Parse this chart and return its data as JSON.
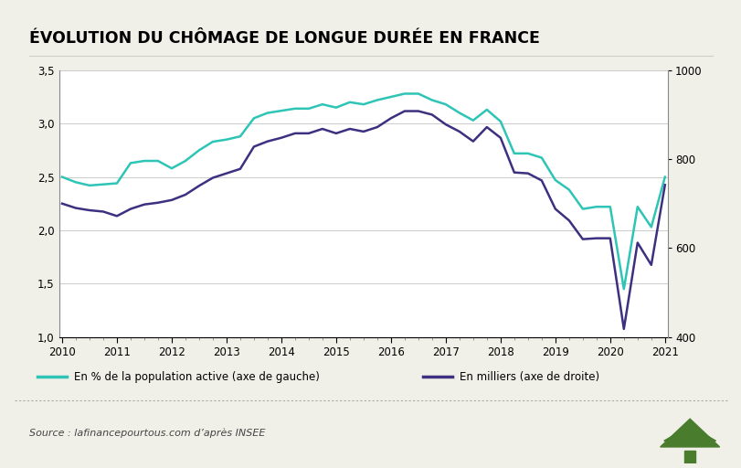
{
  "title": "ÉVOLUTION DU CHÔMAGE DE LONGUE DURÉE EN FRANCE",
  "source": "Source : lafinancepourtous.com d’après INSEE",
  "color_pct": "#2ec4b6",
  "color_thou": "#3d3080",
  "left_ylim": [
    1.0,
    3.5
  ],
  "right_ylim": [
    400,
    1000
  ],
  "left_yticks": [
    1.0,
    1.5,
    2.0,
    2.5,
    3.0,
    3.5
  ],
  "right_ytick_positions": [
    400,
    600,
    800,
    1000
  ],
  "right_ytick_labels": [
    "400",
    "600",
    "800",
    "1000"
  ],
  "legend_pct": "En % de la population active (axe de gauche)",
  "legend_thou": "En milliers (axe de droite)",
  "background_color": "#f0efe8",
  "plot_bg": "#ffffff",
  "years_pct": [
    2010.0,
    2010.25,
    2010.5,
    2010.75,
    2011.0,
    2011.25,
    2011.5,
    2011.75,
    2012.0,
    2012.25,
    2012.5,
    2012.75,
    2013.0,
    2013.25,
    2013.5,
    2013.75,
    2014.0,
    2014.25,
    2014.5,
    2014.75,
    2015.0,
    2015.25,
    2015.5,
    2015.75,
    2016.0,
    2016.25,
    2016.5,
    2016.75,
    2017.0,
    2017.25,
    2017.5,
    2017.75,
    2018.0,
    2018.25,
    2018.5,
    2018.75,
    2019.0,
    2019.25,
    2019.5,
    2019.75,
    2020.0,
    2020.25,
    2020.5,
    2020.75,
    2021.0
  ],
  "values_pct": [
    2.5,
    2.45,
    2.42,
    2.43,
    2.44,
    2.63,
    2.65,
    2.65,
    2.58,
    2.65,
    2.75,
    2.83,
    2.85,
    2.88,
    3.05,
    3.1,
    3.12,
    3.14,
    3.14,
    3.18,
    3.15,
    3.2,
    3.18,
    3.22,
    3.25,
    3.28,
    3.28,
    3.22,
    3.18,
    3.1,
    3.03,
    3.13,
    3.02,
    2.72,
    2.72,
    2.68,
    2.47,
    2.38,
    2.2,
    2.22,
    2.22,
    1.45,
    2.22,
    2.03,
    2.5
  ],
  "years_thou": [
    2010.0,
    2010.25,
    2010.5,
    2010.75,
    2011.0,
    2011.25,
    2011.5,
    2011.75,
    2012.0,
    2012.25,
    2012.5,
    2012.75,
    2013.0,
    2013.25,
    2013.5,
    2013.75,
    2014.0,
    2014.25,
    2014.5,
    2014.75,
    2015.0,
    2015.25,
    2015.5,
    2015.75,
    2016.0,
    2016.25,
    2016.5,
    2016.75,
    2017.0,
    2017.25,
    2017.5,
    2017.75,
    2018.0,
    2018.25,
    2018.5,
    2018.75,
    2019.0,
    2019.25,
    2019.5,
    2019.75,
    2020.0,
    2020.25,
    2020.5,
    2020.75,
    2021.0
  ],
  "values_thou": [
    700,
    690,
    685,
    682,
    672,
    688,
    698,
    702,
    708,
    720,
    740,
    758,
    768,
    778,
    828,
    840,
    848,
    858,
    858,
    868,
    858,
    868,
    862,
    872,
    892,
    908,
    908,
    900,
    878,
    862,
    840,
    872,
    848,
    770,
    768,
    752,
    688,
    662,
    620,
    622,
    622,
    418,
    612,
    562,
    742
  ]
}
